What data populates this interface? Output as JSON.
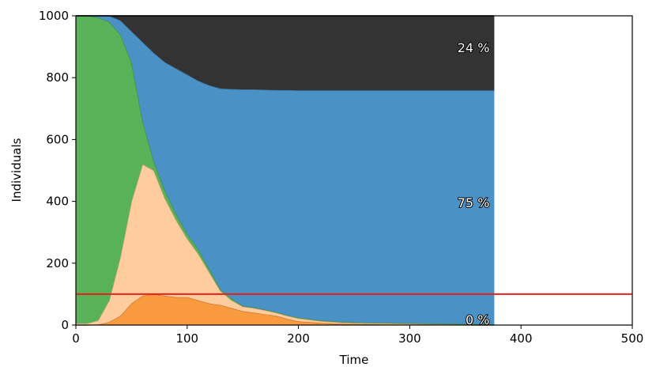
{
  "chart_data": {
    "type": "stackedarea",
    "xlabel": "Time",
    "ylabel": "Individuals",
    "x": [
      0,
      10,
      20,
      30,
      40,
      50,
      60,
      70,
      80,
      90,
      100,
      110,
      120,
      130,
      140,
      150,
      160,
      170,
      180,
      190,
      200,
      220,
      240,
      260,
      280,
      300,
      320,
      340,
      360,
      376
    ],
    "series": [
      {
        "color": "#f99a3e",
        "values": [
          0,
          0,
          2,
          10,
          30,
          70,
          95,
          100,
          95,
          90,
          90,
          80,
          70,
          65,
          55,
          45,
          40,
          35,
          30,
          20,
          12,
          7,
          4,
          3,
          2,
          1,
          1,
          1,
          0,
          0
        ]
      },
      {
        "color": "#ffcc9e",
        "values": [
          5,
          5,
          13,
          70,
          190,
          330,
          425,
          400,
          315,
          250,
          190,
          150,
          100,
          45,
          25,
          15,
          15,
          13,
          10,
          10,
          10,
          6,
          4,
          3,
          3,
          3,
          2,
          1,
          1,
          1
        ]
      },
      {
        "color": "#58b358",
        "values": [
          995,
          995,
          980,
          900,
          720,
          450,
          140,
          30,
          25,
          20,
          15,
          15,
          10,
          5,
          5,
          2,
          2,
          2,
          2,
          2,
          2,
          2,
          2,
          2,
          2,
          2,
          2,
          2,
          2,
          1
        ]
      },
      {
        "color": "#4a92c5",
        "values": [
          0,
          0,
          5,
          20,
          45,
          100,
          255,
          350,
          415,
          470,
          515,
          545,
          595,
          650,
          678,
          700,
          705,
          711,
          718,
          728,
          735,
          744,
          749,
          751,
          752,
          753,
          754,
          755,
          756,
          757
        ]
      },
      {
        "color": "#333333",
        "values": [
          0,
          0,
          0,
          0,
          15,
          50,
          85,
          120,
          150,
          170,
          190,
          210,
          225,
          235,
          237,
          238,
          238,
          239,
          240,
          240,
          241,
          241,
          241,
          241,
          241,
          241,
          241,
          241,
          241,
          241
        ]
      }
    ],
    "annotations": [
      "24 %",
      "75 %",
      "0 %"
    ],
    "hline": 100,
    "hline_color": "#e8201c",
    "xlim": [
      0,
      500
    ],
    "xticks": [
      0,
      100,
      200,
      300,
      400,
      500
    ],
    "ylim": [
      0,
      1000
    ],
    "yticks": [
      0,
      200,
      400,
      600,
      800,
      1000
    ]
  }
}
